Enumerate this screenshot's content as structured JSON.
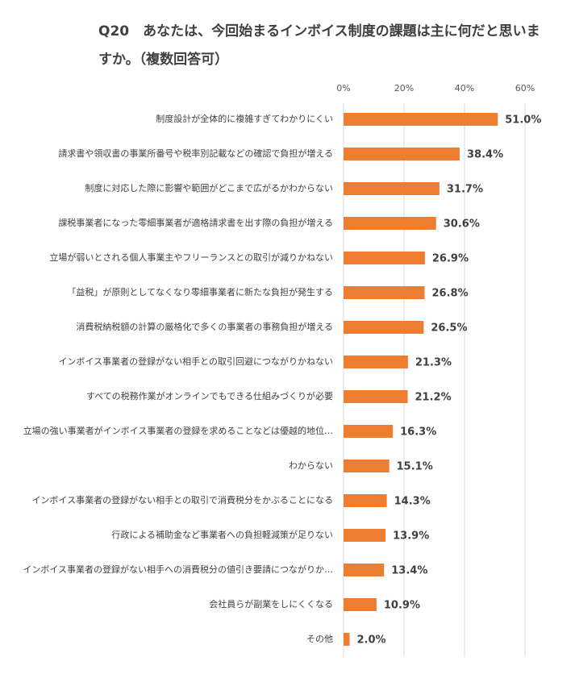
{
  "chart_data": {
    "type": "bar",
    "orientation": "horizontal",
    "title": "Q20　あなたは、今回始まるインボイス制度の課題は主に何だと思いますか。（複数回答可）",
    "categories": [
      "制度設計が全体的に複雑すぎてわかりにくい",
      "請求書や領収書の事業所番号や税率別記載などの確認で負担が増える",
      "制度に対応した際に影響や範囲がどこまで広がるかわからない",
      "課税事業者になった零細事業者が適格請求書を出す際の負担が増える",
      "立場が弱いとされる個人事業主やフリーランスとの取引が減りかねない",
      "「益税」が原則としてなくなり零細事業者に新たな負担が発生する",
      "消費税納税額の計算の厳格化で多くの事業者の事務負担が増える",
      "インボイス事業者の登録がない相手との取引回避につながりかねない",
      "すべての税務作業がオンラインでもできる仕組みづくりが必要",
      "立場の強い事業者がインボイス事業者の登録を求めることなどは優越的地位…",
      "わからない",
      "インボイス事業者の登録がない相手との取引で消費税分をかぶることになる",
      "行政による補助金など事業者への負担軽減策が足りない",
      "インボイス事業者の登録がない相手への消費税分の値引き要請につながりか…",
      "会社員らが副業をしにくくなる",
      "その他"
    ],
    "values": [
      51.0,
      38.4,
      31.7,
      30.6,
      26.9,
      26.8,
      26.5,
      21.3,
      21.2,
      16.3,
      15.1,
      14.3,
      13.9,
      13.4,
      10.9,
      2.0
    ],
    "value_labels": [
      "51.0%",
      "38.4%",
      "31.7%",
      "30.6%",
      "26.9%",
      "26.8%",
      "26.5%",
      "21.3%",
      "21.2%",
      "16.3%",
      "15.1%",
      "14.3%",
      "13.9%",
      "13.4%",
      "10.9%",
      "2.0%"
    ],
    "color": "#ed7d31",
    "xlim": [
      0,
      60
    ],
    "xticks": [
      {
        "value": 0,
        "label": "0%"
      },
      {
        "value": 20,
        "label": "20%"
      },
      {
        "value": 40,
        "label": "40%"
      },
      {
        "value": 60,
        "label": "60%"
      }
    ],
    "grid": true
  }
}
